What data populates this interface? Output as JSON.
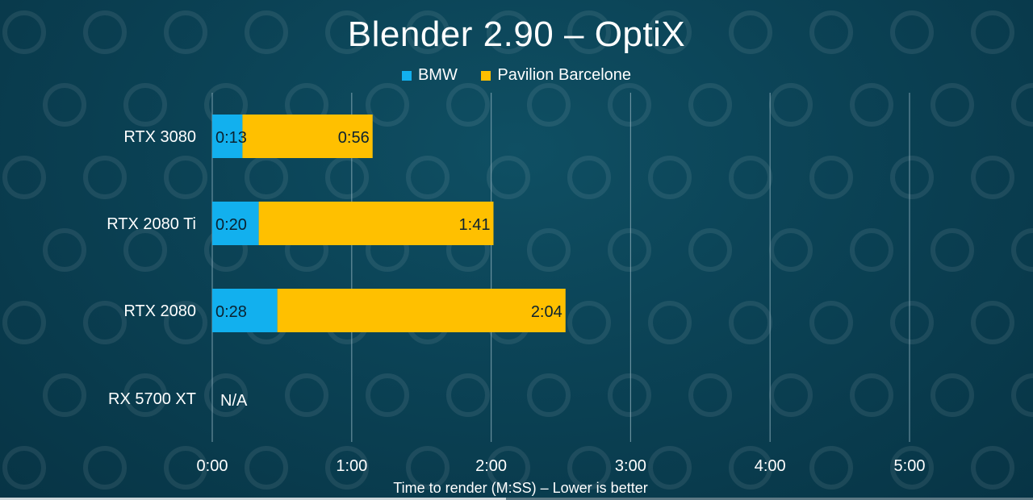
{
  "chart_data": {
    "type": "bar",
    "stacked": true,
    "orientation": "horizontal",
    "title": "Blender 2.90 – OptiX",
    "xlabel": "Time to render (M:SS) – Lower is better",
    "categories": [
      "RTX 3080",
      "RTX 2080 Ti",
      "RTX 2080",
      "RX 5700 XT"
    ],
    "series": [
      {
        "name": "BMW",
        "color": "#12b0ee",
        "values": [
          13,
          20,
          28,
          null
        ],
        "labels": [
          "0:13",
          "0:20",
          "0:28",
          "N/A"
        ]
      },
      {
        "name": "Pavilion Barcelone",
        "color": "#ffc000",
        "values": [
          56,
          101,
          124,
          null
        ],
        "labels": [
          "0:56",
          "1:41",
          "2:04",
          ""
        ]
      }
    ],
    "xlim": [
      0,
      300
    ],
    "xticks": [
      0,
      60,
      120,
      180,
      240,
      300
    ],
    "xtick_labels": [
      "0:00",
      "1:00",
      "2:00",
      "3:00",
      "4:00",
      "5:00"
    ],
    "grid": true,
    "legend": "top-center"
  },
  "video_progress": 0.49
}
